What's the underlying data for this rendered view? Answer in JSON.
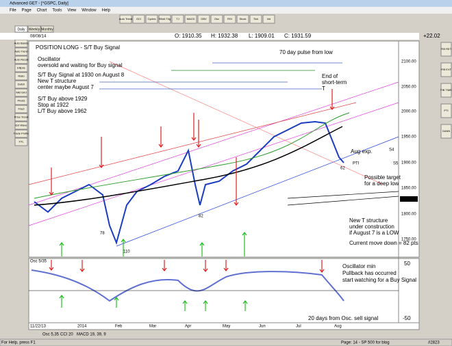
{
  "window_title": "Advanced GET - [^GSPC, Daily]",
  "menu": [
    "File",
    "Page",
    "Chart",
    "Tools",
    "View",
    "Window",
    "Help"
  ],
  "toolbar": [
    "Auto Trend",
    "GCI",
    "Cycles",
    "Elliott Trig",
    "TJ",
    "MACD",
    "OBV",
    "Osc",
    "RSI",
    "Stock",
    "Tick",
    "Vol"
  ],
  "tabs": [
    "Daily",
    "Weekly",
    "Monthly"
  ],
  "quote": {
    "date": "08/08/14",
    "open": "O: 1910.35",
    "high": "H: 1932.38",
    "low": "L: 1909.01",
    "close": "C: 1931.59",
    "change": "+22.02"
  },
  "left_tools": [
    "Auto Bands",
    "Auto Trend",
    "Auto Recall",
    "Ellipse",
    "Ratio",
    "Dutch",
    "Mkt Grid",
    "Pivots",
    "Fract",
    "Price Trend",
    "Ext Wave",
    "Trade Profile",
    "XTL"
  ],
  "right_tools": [
    "FIB RET",
    "FIB EXT",
    "FIB TIME",
    "PTI",
    "GANN"
  ],
  "price_axis": [
    "2100.00",
    "2050.00",
    "2000.00",
    "1950.00",
    "1900.00",
    "1850.00",
    "1826.61",
    "1800.00",
    "1750.00"
  ],
  "annotations": [
    "POSITION LONG - S/T Buy Signal",
    "Oscillator",
    "oversold and waiting for Buy signal",
    "S/T Buy Signal at 1930 on August 8",
    "New T structure",
    "center maybe August 7",
    "S/T Buy above 1929",
    "Stop at 1922",
    "L/T Buy above 1962",
    "70 day pulse from low",
    "End of",
    "short-term",
    "T",
    "Aug exp.",
    "Possible target",
    "for a deep low",
    "New T structure",
    "under construction",
    "if August 7 is a LOW",
    "Current move down = 82 pts"
  ],
  "chart_labels": [
    "82",
    "78",
    "110",
    "62",
    "S4",
    "S5",
    "PTI"
  ],
  "oscillator": {
    "label": "Osc 5/35",
    "axis": [
      "50",
      "-50"
    ],
    "annotations": [
      "Oscillator min",
      "Pullback has occurred",
      "start watching for a Buy Signal",
      "20 days from Osc. sell signal"
    ]
  },
  "date_axis": [
    "11/22/13",
    "2014",
    "Feb",
    "Mar",
    "Apr",
    "May",
    "Jun",
    "Jul",
    "Aug"
  ],
  "bottom_tabs": [
    "Osc 5,35",
    "CCI 20",
    "MACD 19, 39, 9"
  ],
  "status": {
    "help": "For Help, press F1",
    "page": "Page: 14 - SP 500 for blog",
    "count": "#2823"
  }
}
